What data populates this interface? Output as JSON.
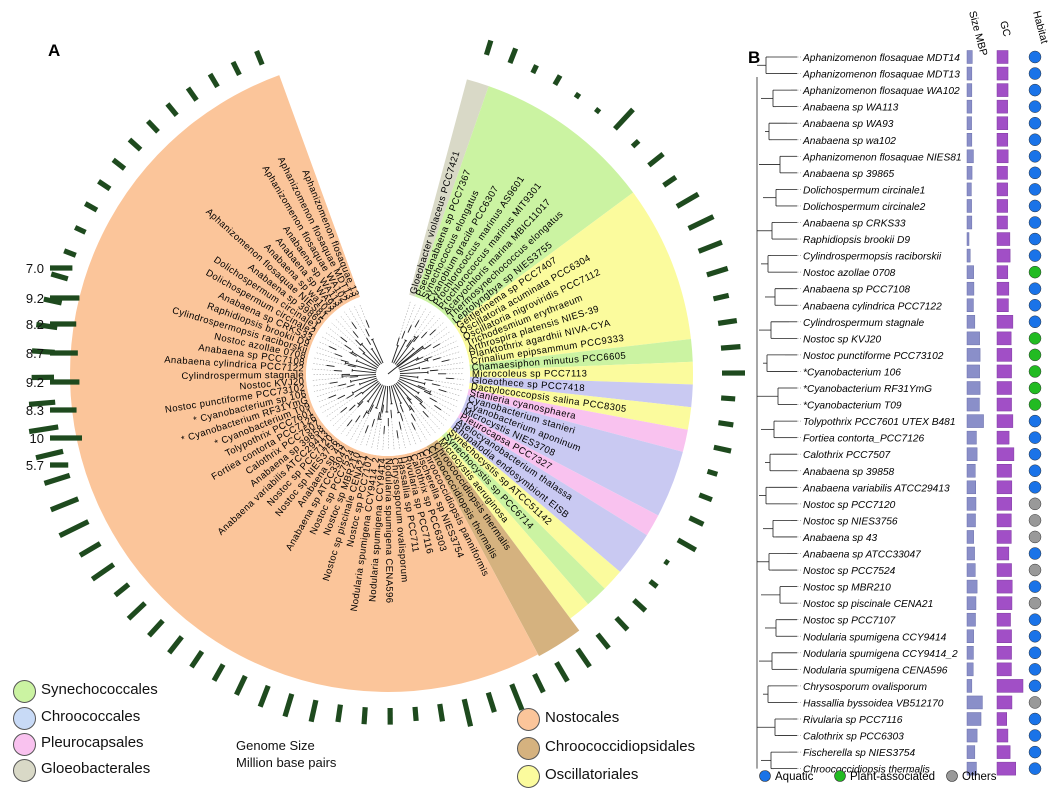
{
  "panel_a": {
    "letter": "A",
    "scale_labels": [
      "7.0",
      "9.2",
      "8.2",
      "8.7",
      "9.2",
      "8.3",
      "10",
      "5.7"
    ],
    "genome_caption_line1": "Genome Size",
    "genome_caption_line2": "Million base pairs",
    "legend_left": [
      {
        "label": "Synechococcales",
        "color": "#cbf3a2"
      },
      {
        "label": "Chroococcales",
        "color": "#c9c9f2"
      },
      {
        "label": "Pleurocapsales",
        "color": "#f9c2ef"
      },
      {
        "label": "Gloeobacterales",
        "color": "#d9d9c7"
      }
    ],
    "legend_right": [
      {
        "label": "Nostocales",
        "color": "#fbc59a"
      },
      {
        "label": "Chroococcidiopsidales",
        "color": "#d5b27f"
      },
      {
        "label": "Oscillatoriales",
        "color": "#fbfb9d"
      }
    ],
    "taxa": [
      {
        "name": "Gloeobacter violaceus PCC7421",
        "order": "Gloeobacterales"
      },
      {
        "name": "Pseudanabaena sp PCC7367",
        "order": "Synechococcales"
      },
      {
        "name": "Synechococcus elongatus",
        "order": "Synechococcales"
      },
      {
        "name": "Cyanobium gracile PCC6307",
        "order": "Synechococcales"
      },
      {
        "name": "Prochlorococcus marinus AS9601",
        "order": "Synechococcales"
      },
      {
        "name": "Prochlorococcus marinus MIT9301",
        "order": "Synechococcales"
      },
      {
        "name": "Acaryochloris marina MBIC11017",
        "order": "Synechococcales"
      },
      {
        "name": "Thermosynechococcus elongatus",
        "order": "Synechococcales"
      },
      {
        "name": "Leptolyngbya sp NIES3755",
        "order": "Synechococcales"
      },
      {
        "name": "Geitlerinema sp PCC7407",
        "order": "Oscillatoriales"
      },
      {
        "name": "Oscillatoria acuminata PCC6304",
        "order": "Oscillatoriales"
      },
      {
        "name": "Oscillatoria nigroviridis PCC7112",
        "order": "Oscillatoriales"
      },
      {
        "name": "Trichodesmium erythraeum",
        "order": "Oscillatoriales"
      },
      {
        "name": "Arthrospira platensis NIES-39",
        "order": "Oscillatoriales"
      },
      {
        "name": "Planktothrix agardhii NIVA-CYA",
        "order": "Oscillatoriales"
      },
      {
        "name": "Crinalium epipsammum PCC9333",
        "order": "Oscillatoriales"
      },
      {
        "name": "Chamaesiphon minutus PCC6605",
        "order": "Synechococcales"
      },
      {
        "name": "Microcoleus sp PCC7113",
        "order": "Oscillatoriales"
      },
      {
        "name": "Gloeothece sp PCC7418",
        "order": "Chroococcales"
      },
      {
        "name": "Dactylococcopsis salina PCC8305",
        "order": "Oscillatoriales"
      },
      {
        "name": "Stanieria cyanosphaera",
        "order": "Pleurocapsales"
      },
      {
        "name": "Cyanobacterium stanieri",
        "order": "Chroococcales"
      },
      {
        "name": "Cyanobacterium aponinum",
        "order": "Chroococcales"
      },
      {
        "name": "Microcystis NIES3708",
        "order": "Chroococcales"
      },
      {
        "name": "Pleurocapsa PCC7327",
        "order": "Pleurocapsales"
      },
      {
        "name": "Atelocyanobacterium thalassa",
        "order": "Chroococcales"
      },
      {
        "name": "Rhopalodia endosymbiont EISB",
        "order": "Chroococcales"
      },
      {
        "name": "Synechocystis sp ATCC51142",
        "order": "Oscillatoriales"
      },
      {
        "name": "Synechocystis sp PCC6714",
        "order": "Synechococcales"
      },
      {
        "name": "Microcystis aeruginosa",
        "order": "Oscillatoriales"
      },
      {
        "name": "Chroococcidiopsis thermalis",
        "order": "Chroococcidiopsidales"
      },
      {
        "name": "Chroococcidiopsis thermalis",
        "order": "Chroococcidiopsidales"
      },
      {
        "name": "Chroococcidiopsis panniformis",
        "order": "Nostocales"
      },
      {
        "name": "Fischerella sp NIES3754",
        "order": "Nostocales"
      },
      {
        "name": "Calothrix sp PCC6303",
        "order": "Nostocales"
      },
      {
        "name": "Rivularia sp PCC7116",
        "order": "Nostocales"
      },
      {
        "name": "Hassallia sp PCC711",
        "order": "Nostocales"
      },
      {
        "name": "Chrysosporum ovalisporum",
        "order": "Nostocales"
      },
      {
        "name": "Nodularia spumigena CENA596",
        "order": "Nostocales"
      },
      {
        "name": "Nodularia spumigena CCY9414",
        "order": "Nostocales"
      },
      {
        "name": "Nodularia spumigena CCY9414_2",
        "order": "Nostocales"
      },
      {
        "name": "Nostoc sp PCC7107",
        "order": "Nostocales"
      },
      {
        "name": "Nostoc sp piscinale CENA21",
        "order": "Nostocales"
      },
      {
        "name": "Nostoc sp MBR210",
        "order": "Nostocales"
      },
      {
        "name": "Nostoc sp PCC7524",
        "order": "Nostocales"
      },
      {
        "name": "Anabaena sp ATCC33047",
        "order": "Nostocales"
      },
      {
        "name": "Anabaena sp 43",
        "order": "Nostocales"
      },
      {
        "name": "Nostoc sp NIES3756",
        "order": "Nostocales"
      },
      {
        "name": "Nostoc sp PCC7120",
        "order": "Nostocales"
      },
      {
        "name": "Anabaena variabilis ATCC29413",
        "order": "Nostocales"
      },
      {
        "name": "Anabaena sp 39858",
        "order": "Nostocales"
      },
      {
        "name": "Calothrix PCC7507",
        "order": "Nostocales"
      },
      {
        "name": "Fortiea contorta PCC7126",
        "order": "Nostocales"
      },
      {
        "name": "Tolypothrix PCC7601",
        "order": "Nostocales"
      },
      {
        "name": "* Cyanobacterium T09",
        "order": "Nostocales"
      },
      {
        "name": "* Cyanobacterium RF31YmG",
        "order": "Nostocales"
      },
      {
        "name": "* Cyanobacterium sp 106",
        "order": "Nostocales"
      },
      {
        "name": "Nostoc punctiforme PCC73102",
        "order": "Nostocales"
      },
      {
        "name": "Nostoc KVJ20",
        "order": "Nostocales"
      },
      {
        "name": "Cylindrospermum stagnale",
        "order": "Nostocales"
      },
      {
        "name": "Anabaena cylindrica PCC7122",
        "order": "Nostocales"
      },
      {
        "name": "Anabaena sp PCC7108",
        "order": "Nostocales"
      },
      {
        "name": "Nostoc azollae 0708",
        "order": "Nostocales"
      },
      {
        "name": "Cylindrospermopsis raciborskii",
        "order": "Nostocales"
      },
      {
        "name": "Raphidiopsis brookii D9",
        "order": "Nostocales"
      },
      {
        "name": "Anabaena sp CRKS33",
        "order": "Nostocales"
      },
      {
        "name": "Dolichospermum circinale2",
        "order": "Nostocales"
      },
      {
        "name": "Dolichospermum circinale1",
        "order": "Nostocales"
      },
      {
        "name": "Anabaena sp 39865",
        "order": "Nostocales"
      },
      {
        "name": "Aphanizomenon flosaquae NIES81",
        "order": "Nostocales"
      },
      {
        "name": "Anabaena sp wa102",
        "order": "Nostocales"
      },
      {
        "name": "Anabaena sp WA93",
        "order": "Nostocales"
      },
      {
        "name": "Anabaena sp WA113",
        "order": "Nostocales"
      },
      {
        "name": "Aphanizomenon flosaquae WA102",
        "order": "Nostocales"
      },
      {
        "name": "Aphanizomenon flosaquae MDT13",
        "order": "Nostocales"
      },
      {
        "name": "Aphanizomenon flosaquae 13",
        "order": "Nostocales"
      }
    ],
    "genome_sizes_mbp": [
      4.7,
      4.9,
      2.7,
      3.3,
      1.7,
      1.6,
      8.3,
      2.6,
      5.7,
      4.6,
      7.7,
      8.6,
      7.8,
      6.8,
      4.9,
      5.9,
      6.1,
      7.5,
      4.4,
      4.7,
      5.5,
      3.2,
      4.2,
      4.8,
      6.4,
      1.4,
      2.8,
      4.9,
      5.1,
      5.6,
      6.7,
      6.8,
      6.3,
      8.6,
      6.4,
      8.7,
      5.5,
      4.4,
      5.2,
      5.3,
      5.5,
      6.9,
      7.4,
      7.0,
      6.5,
      5.8,
      5.9,
      6.4,
      6.4,
      7.1,
      5.4,
      8.1,
      7.3,
      10.0,
      9.2,
      8.3,
      8.7,
      9.2,
      8.2,
      7.0,
      7.1,
      6.6,
      5.7,
      5.4,
      3.9,
      3.6,
      4.2,
      4.3,
      4.5,
      4.7,
      4.6,
      4.6,
      4.7,
      4.6,
      4.5,
      4.6
    ]
  },
  "panel_b": {
    "letter": "B",
    "column_headers": {
      "size": "Size MBP",
      "gc": "GC",
      "habitat": "Habitat"
    },
    "habitat_colors": {
      "Aquatic": "#1a73e8",
      "Plant-associated": "#22bb22",
      "Others": "#999999"
    },
    "legend": [
      {
        "label": "Aquatic",
        "color": "#1a73e8"
      },
      {
        "label": "Plant-associated",
        "color": "#22bb22"
      },
      {
        "label": "Others",
        "color": "#999999"
      }
    ],
    "rows": [
      {
        "name": "Aphanizomenon flosaquae MDT14",
        "size": 4.8,
        "gc": 38.5,
        "habitat": "Aquatic"
      },
      {
        "name": "Aphanizomenon flosaquae MDT13",
        "size": 4.6,
        "gc": 38.5,
        "habitat": "Aquatic"
      },
      {
        "name": "Aphanizomenon flosaquae WA102",
        "size": 4.6,
        "gc": 38.5,
        "habitat": "Aquatic"
      },
      {
        "name": "Anabaena sp WA113",
        "size": 4.6,
        "gc": 38.2,
        "habitat": "Aquatic"
      },
      {
        "name": "Anabaena sp WA93",
        "size": 4.5,
        "gc": 38.3,
        "habitat": "Aquatic"
      },
      {
        "name": "Anabaena sp wa102",
        "size": 4.6,
        "gc": 38.3,
        "habitat": "Aquatic"
      },
      {
        "name": "Aphanizomenon flosaquae NIES81",
        "size": 5.3,
        "gc": 38.6,
        "habitat": "Aquatic"
      },
      {
        "name": "Anabaena sp 39865",
        "size": 4.7,
        "gc": 38.1,
        "habitat": "Aquatic"
      },
      {
        "name": "Dolichospermum circinale1",
        "size": 4.4,
        "gc": 38.2,
        "habitat": "Aquatic"
      },
      {
        "name": "Dolichospermum circinale2",
        "size": 4.5,
        "gc": 38.2,
        "habitat": "Aquatic"
      },
      {
        "name": "Anabaena sp CRKS33",
        "size": 4.6,
        "gc": 38.1,
        "habitat": "Aquatic"
      },
      {
        "name": "Raphidiopsis brookii D9",
        "size": 3.2,
        "gc": 39.9,
        "habitat": "Aquatic"
      },
      {
        "name": "Cylindrospermopsis raciborskii",
        "size": 3.9,
        "gc": 40.1,
        "habitat": "Aquatic"
      },
      {
        "name": "Nostoc azollae 0708",
        "size": 5.4,
        "gc": 38.3,
        "habitat": "Plant-associated"
      },
      {
        "name": "Anabaena sp PCC7108",
        "size": 5.5,
        "gc": 39.1,
        "habitat": "Aquatic"
      },
      {
        "name": "Anabaena cylindrica PCC7122",
        "size": 5.3,
        "gc": 38.8,
        "habitat": "Aquatic"
      },
      {
        "name": "Cylindrospermum stagnale",
        "size": 5.9,
        "gc": 42.2,
        "habitat": "Aquatic"
      },
      {
        "name": "Nostoc sp KVJ20",
        "size": 8.0,
        "gc": 40.9,
        "habitat": "Plant-associated"
      },
      {
        "name": "Nostoc punctiforme PCC73102",
        "size": 8.2,
        "gc": 41.4,
        "habitat": "Plant-associated"
      },
      {
        "name": "*Cyanobacterium 106",
        "size": 8.0,
        "gc": 41.2,
        "habitat": "Plant-associated"
      },
      {
        "name": "*Cyanobacterium RF31YmG",
        "size": 8.2,
        "gc": 41.2,
        "habitat": "Plant-associated"
      },
      {
        "name": "*Cyanobacterium T09",
        "size": 7.9,
        "gc": 41.2,
        "habitat": "Plant-associated"
      },
      {
        "name": "Tolypothrix PCC7601 UTEX B481",
        "size": 9.7,
        "gc": 42.2,
        "habitat": "Aquatic"
      },
      {
        "name": "Fortiea contorta_PCC7126",
        "size": 6.6,
        "gc": 39.3,
        "habitat": "Aquatic"
      },
      {
        "name": "Calothrix PCC7507",
        "size": 6.9,
        "gc": 43.0,
        "habitat": "Aquatic"
      },
      {
        "name": "Anabaena sp 39858",
        "size": 6.1,
        "gc": 41.2,
        "habitat": "Aquatic"
      },
      {
        "name": "Anabaena variabilis ATCC29413",
        "size": 6.3,
        "gc": 41.4,
        "habitat": "Aquatic"
      },
      {
        "name": "Nostoc sp PCC7120",
        "size": 6.4,
        "gc": 41.3,
        "habitat": "Others"
      },
      {
        "name": "Nostoc sp NIES3756",
        "size": 6.2,
        "gc": 41.0,
        "habitat": "Others"
      },
      {
        "name": "Anabaena sp 43",
        "size": 5.4,
        "gc": 41.0,
        "habitat": "Others"
      },
      {
        "name": "Anabaena sp ATCC33047",
        "size": 5.8,
        "gc": 39.1,
        "habitat": "Aquatic"
      },
      {
        "name": "Nostoc sp PCC7524",
        "size": 6.1,
        "gc": 41.2,
        "habitat": "Others"
      },
      {
        "name": "Nostoc sp MBR210",
        "size": 6.9,
        "gc": 41.7,
        "habitat": "Aquatic"
      },
      {
        "name": "Nostoc sp piscinale CENA21",
        "size": 6.4,
        "gc": 41.5,
        "habitat": "Others"
      },
      {
        "name": "Nostoc sp PCC7107",
        "size": 6.2,
        "gc": 40.4,
        "habitat": "Aquatic"
      },
      {
        "name": "Nodularia spumigena CCY9414",
        "size": 5.4,
        "gc": 41.2,
        "habitat": "Aquatic"
      },
      {
        "name": "Nodularia spumigena CCY9414_2",
        "size": 5.3,
        "gc": 41.2,
        "habitat": "Aquatic"
      },
      {
        "name": "Nodularia spumigena CENA596",
        "size": 5.2,
        "gc": 41.1,
        "habitat": "Aquatic"
      },
      {
        "name": "Chrysosporum ovalisporum",
        "size": 4.6,
        "gc": 50.0,
        "habitat": "Aquatic"
      },
      {
        "name": "Hassallia byssoidea VB512170",
        "size": 9.2,
        "gc": 41.5,
        "habitat": "Others"
      },
      {
        "name": "Rivularia sp PCC7116",
        "size": 8.6,
        "gc": 37.5,
        "habitat": "Aquatic"
      },
      {
        "name": "Calothrix sp PCC6303",
        "size": 6.9,
        "gc": 38.4,
        "habitat": "Aquatic"
      },
      {
        "name": "Fischerella sp NIES3754",
        "size": 5.9,
        "gc": 40.1,
        "habitat": "Aquatic"
      },
      {
        "name": "Chroococcidiopsis thermalis",
        "size": 6.6,
        "gc": 44.4,
        "habitat": "Aquatic"
      }
    ]
  }
}
